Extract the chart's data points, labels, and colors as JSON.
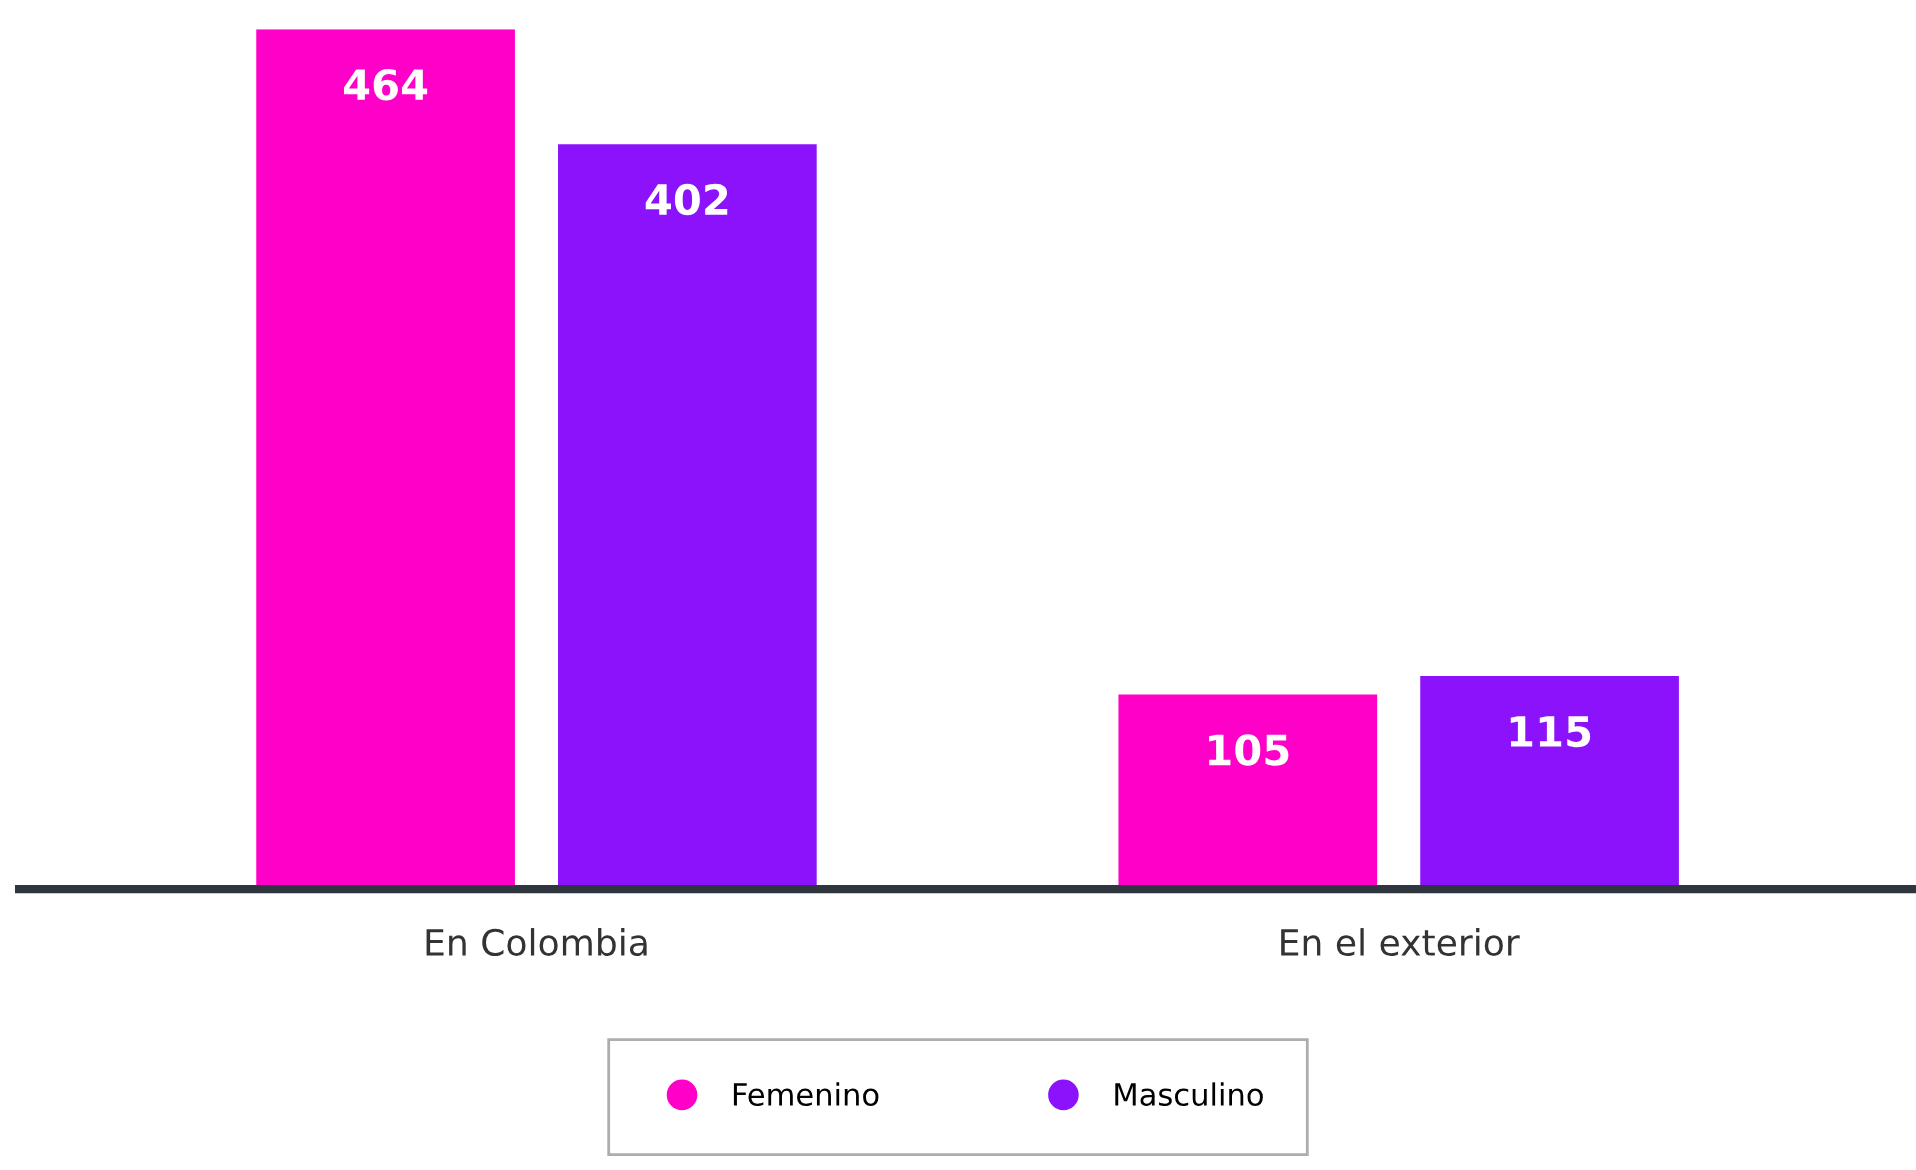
{
  "chart_data": {
    "type": "bar",
    "categories": [
      "En Colombia",
      "En el exterior"
    ],
    "series": [
      {
        "name": "Femenino",
        "color": "#ff00c8",
        "values": [
          464,
          105
        ]
      },
      {
        "name": "Masculino",
        "color": "#8c12fc",
        "values": [
          402,
          115
        ]
      }
    ],
    "data_labels": true,
    "legend": "bottom",
    "grid": false
  }
}
